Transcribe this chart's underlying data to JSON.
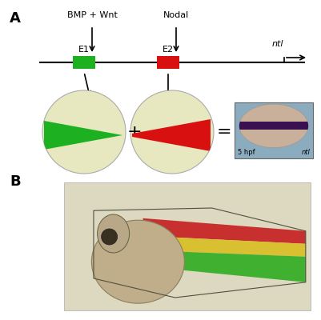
{
  "bg_color": "#ffffff",
  "panel_A_label": "A",
  "panel_B_label": "B",
  "bmp_wnt_label": "BMP + Wnt",
  "nodal_label": "Nodal",
  "e1_label": "E1",
  "e2_label": "E2",
  "ntl_label": "ntl",
  "e1_color": "#1db020",
  "e2_color": "#d81010",
  "circle_fill": "#e8e8c0",
  "circle_edge": "#aaaaaa",
  "hpf_label": "5 hpf",
  "ntl_label2": "ntl",
  "embryo_bg": "#8aacbe",
  "embryo_fill": "#c8b09a",
  "embryo_band": "#3a1050",
  "fish_bg": "#e8e0c8",
  "fish_red": "#c83030",
  "fish_yellow": "#d8c030",
  "fish_green": "#40b030",
  "fish_head": "#b8a888",
  "fish_dark": "#504030"
}
